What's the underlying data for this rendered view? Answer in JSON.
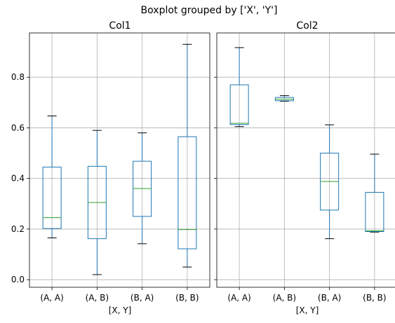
{
  "chart_data": {
    "type": "box",
    "title": "Boxplot grouped by ['X', 'Y']",
    "grid": true,
    "sharey": true,
    "ylim": [
      -0.03,
      0.975
    ],
    "yticks": [
      0.0,
      0.2,
      0.4,
      0.6,
      0.8
    ],
    "ytick_labels": [
      "0.0",
      "0.2",
      "0.4",
      "0.6",
      "0.8"
    ],
    "box_color": "#1f77b4",
    "median_color": "#2ca02c",
    "grid_color": "#b0b0b0",
    "panels": [
      {
        "title": "Col1",
        "xlabel": "[X, Y]",
        "categories": [
          "(A, A)",
          "(A, B)",
          "(B, A)",
          "(B, B)"
        ],
        "boxes": [
          {
            "min": 0.165,
            "q1": 0.202,
            "median": 0.245,
            "q3": 0.445,
            "max": 0.647
          },
          {
            "min": 0.02,
            "q1": 0.162,
            "median": 0.305,
            "q3": 0.448,
            "max": 0.59
          },
          {
            "min": 0.142,
            "q1": 0.25,
            "median": 0.36,
            "q3": 0.468,
            "max": 0.58
          },
          {
            "min": 0.05,
            "q1": 0.122,
            "median": 0.198,
            "q3": 0.565,
            "max": 0.93
          }
        ]
      },
      {
        "title": "Col2",
        "xlabel": "[X, Y]",
        "categories": [
          "(A, A)",
          "(A, B)",
          "(B, A)",
          "(B, B)"
        ],
        "boxes": [
          {
            "min": 0.605,
            "q1": 0.613,
            "median": 0.618,
            "q3": 0.77,
            "max": 0.917
          },
          {
            "min": 0.705,
            "q1": 0.707,
            "median": 0.713,
            "q3": 0.72,
            "max": 0.727
          },
          {
            "min": 0.162,
            "q1": 0.275,
            "median": 0.388,
            "q3": 0.5,
            "max": 0.612
          },
          {
            "min": 0.188,
            "q1": 0.19,
            "median": 0.193,
            "q3": 0.345,
            "max": 0.496
          }
        ]
      }
    ]
  }
}
